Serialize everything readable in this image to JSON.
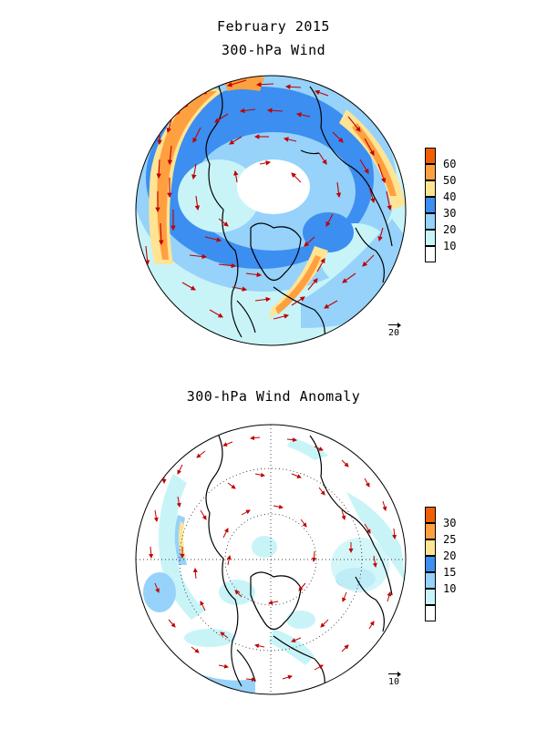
{
  "titles": {
    "date": "February 2015",
    "top": "300-hPa Wind",
    "bottom": "300-hPa Wind Anomaly"
  },
  "top_map": {
    "reference_vector": "20",
    "legend": {
      "labels": [
        "60",
        "50",
        "40",
        "30",
        "20",
        "10"
      ],
      "colors": [
        "#ffffff",
        "#c8f4f8",
        "#96d2fa",
        "#3c8ef0",
        "#ffe494",
        "#ffa040",
        "#f06000"
      ]
    }
  },
  "bottom_map": {
    "reference_vector": "10",
    "legend": {
      "labels": [
        "30",
        "25",
        "20",
        "15",
        "10"
      ],
      "colors": [
        "#ffffff",
        "#c8f4f8",
        "#96d2fa",
        "#3c8ef0",
        "#ffe494",
        "#ffa040",
        "#f06000"
      ]
    }
  },
  "colors": {
    "vector": "#c00000",
    "coast": "#000000"
  }
}
